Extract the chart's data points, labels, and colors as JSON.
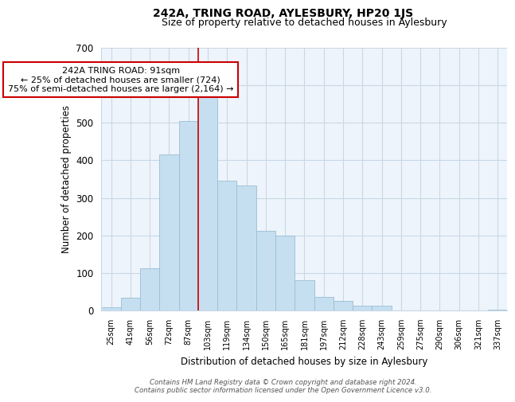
{
  "title": "242A, TRING ROAD, AYLESBURY, HP20 1JS",
  "subtitle": "Size of property relative to detached houses in Aylesbury",
  "xlabel": "Distribution of detached houses by size in Aylesbury",
  "ylabel": "Number of detached properties",
  "categories": [
    "25sqm",
    "41sqm",
    "56sqm",
    "72sqm",
    "87sqm",
    "103sqm",
    "119sqm",
    "134sqm",
    "150sqm",
    "165sqm",
    "181sqm",
    "197sqm",
    "212sqm",
    "228sqm",
    "243sqm",
    "259sqm",
    "275sqm",
    "290sqm",
    "306sqm",
    "321sqm",
    "337sqm"
  ],
  "values": [
    8,
    35,
    113,
    415,
    505,
    577,
    345,
    333,
    213,
    200,
    80,
    37,
    26,
    13,
    13,
    0,
    0,
    0,
    0,
    0,
    3
  ],
  "bar_color": "#c5dff0",
  "bar_edge_color": "#9bbdd4",
  "vline_color": "#cc0000",
  "vline_x_index": 4.5,
  "annotation_line1": "242A TRING ROAD: 91sqm",
  "annotation_line2": "← 25% of detached houses are smaller (724)",
  "annotation_line3": "75% of semi-detached houses are larger (2,164) →",
  "annotation_box_color": "#ffffff",
  "annotation_box_edge": "#cc0000",
  "ylim": [
    0,
    700
  ],
  "yticks": [
    0,
    100,
    200,
    300,
    400,
    500,
    600,
    700
  ],
  "footer_line1": "Contains HM Land Registry data © Crown copyright and database right 2024.",
  "footer_line2": "Contains public sector information licensed under the Open Government Licence v3.0.",
  "background_color": "#ffffff",
  "plot_bg_color": "#eef4fb",
  "grid_color": "#c8d8e8",
  "title_fontsize": 10,
  "subtitle_fontsize": 9
}
